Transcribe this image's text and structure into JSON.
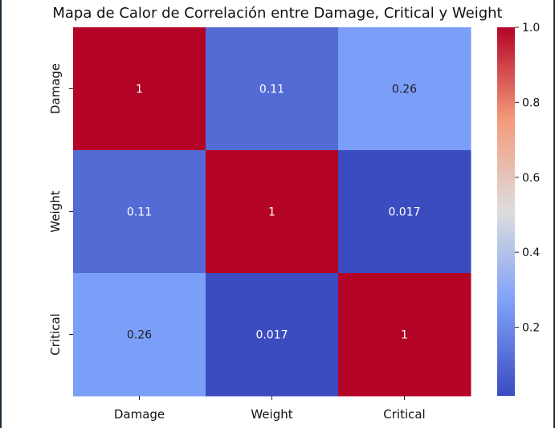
{
  "chart_data": {
    "type": "heatmap",
    "title": "Mapa de Calor de Correlación entre Damage, Critical y Weight",
    "x_labels": [
      "Damage",
      "Weight",
      "Critical"
    ],
    "y_labels": [
      "Damage",
      "Weight",
      "Critical"
    ],
    "values": [
      [
        1,
        0.11,
        0.26
      ],
      [
        0.11,
        1,
        0.017
      ],
      [
        0.26,
        0.017,
        1
      ]
    ],
    "annotations": [
      [
        "1",
        "0.11",
        "0.26"
      ],
      [
        "0.11",
        "1",
        "0.017"
      ],
      [
        "0.26",
        "0.017",
        "1"
      ]
    ],
    "colormap": "coolwarm",
    "colorbar": {
      "range": [
        0.017,
        1.0
      ],
      "ticks": [
        0.2,
        0.4,
        0.6,
        0.8,
        1.0
      ],
      "tick_labels": [
        "0.2",
        "0.4",
        "0.6",
        "0.8",
        "1.0"
      ]
    }
  }
}
